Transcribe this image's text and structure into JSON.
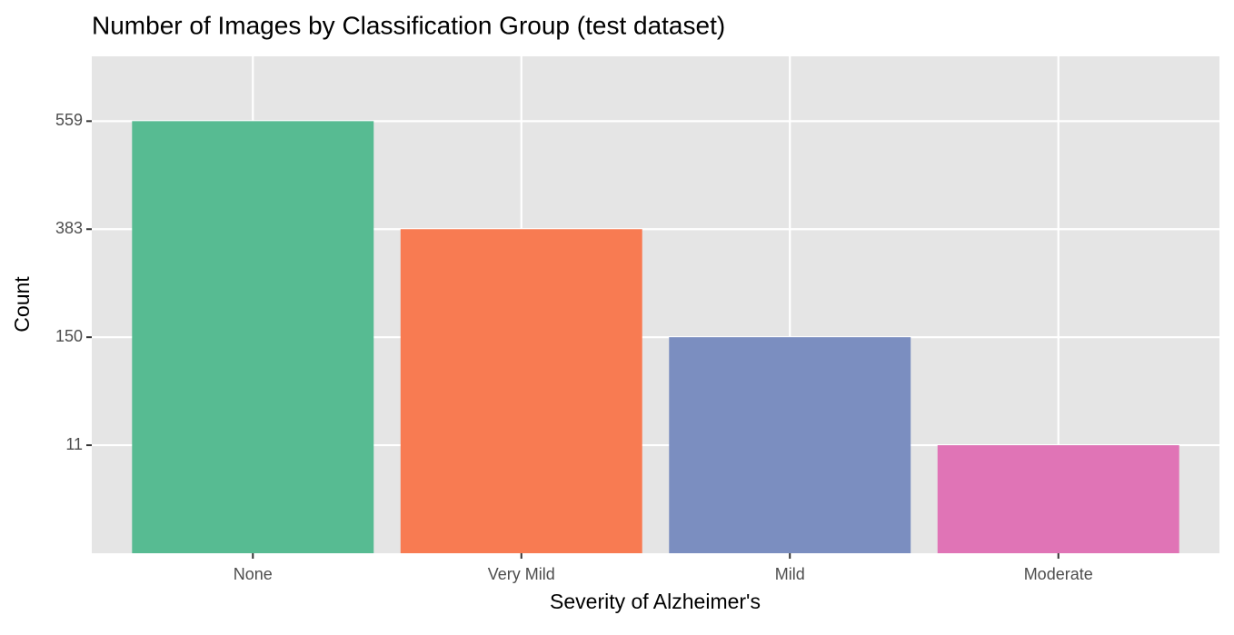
{
  "chart_data": {
    "type": "bar",
    "title": "Number of Images by Classification Group (test dataset)",
    "x_label": "Severity of Alzheimer's",
    "y_label": "Count",
    "categories": [
      "None",
      "Very Mild",
      "Mild",
      "Moderate"
    ],
    "values": [
      559,
      383,
      150,
      11
    ],
    "colors": [
      "#57bb92",
      "#f87b52",
      "#7b8ec0",
      "#e074b6"
    ],
    "y_scale": "ordinal",
    "yticks": [
      11,
      150,
      383,
      559
    ],
    "grid": true
  }
}
